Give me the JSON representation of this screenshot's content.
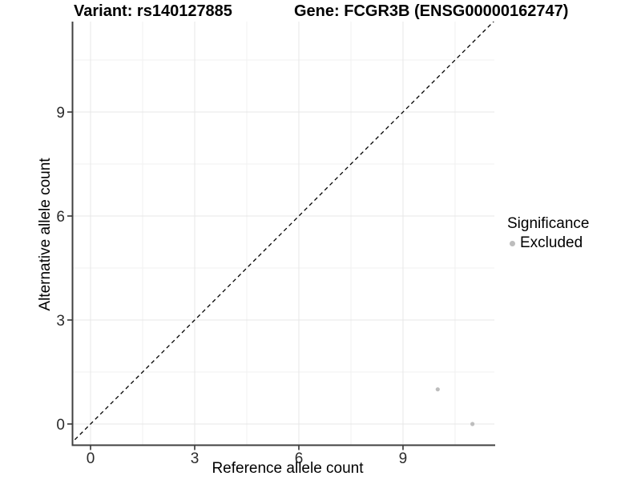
{
  "chart_data": {
    "type": "scatter",
    "titles": {
      "left": "Variant: rs140127885",
      "right": "Gene: FCGR3B (ENSG00000162747)"
    },
    "xlabel": "Reference allele count",
    "ylabel": "Alternative allele count",
    "x_ticks": [
      0,
      3,
      6,
      9
    ],
    "y_ticks": [
      0,
      3,
      6,
      9
    ],
    "x_minor": [
      1.5,
      4.5,
      7.5,
      10.5
    ],
    "y_minor": [
      1.5,
      4.5,
      7.5,
      10.5
    ],
    "xlim": [
      -0.55,
      11.65
    ],
    "ylim": [
      -0.6,
      11.62
    ],
    "grid": true,
    "reference_line": {
      "type": "identity",
      "slope": 1,
      "intercept": 0,
      "style": "dashed",
      "color": "#000000"
    },
    "series": [
      {
        "name": "Excluded",
        "color": "#bdbdbd",
        "point_radius": 2.6,
        "points": [
          [
            10,
            1
          ],
          [
            11,
            0
          ]
        ]
      }
    ],
    "legend": {
      "title": "Significance",
      "position": "right",
      "items": [
        {
          "label": "Excluded",
          "color": "#bdbdbd"
        }
      ]
    },
    "colors": {
      "grid_major": "#e7e7e7",
      "grid_minor": "#f0f0f0",
      "axis": "#404040",
      "tick": "#333333",
      "tick_text": "#2b2b2b"
    }
  }
}
